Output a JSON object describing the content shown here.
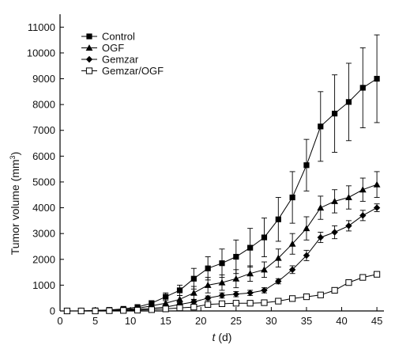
{
  "chart_data": {
    "type": "line",
    "xlabel_var": "t",
    "xlabel_unit": " (d)",
    "ylabel": "Tumor volume (mm",
    "ylabel_sup": "3",
    "ylabel_close": ")",
    "xlim": [
      0,
      46
    ],
    "ylim": [
      0,
      11500
    ],
    "xticks": [
      0,
      5,
      10,
      15,
      20,
      25,
      30,
      35,
      40,
      45
    ],
    "yticks": [
      0,
      1000,
      2000,
      3000,
      4000,
      5000,
      6000,
      7000,
      8000,
      9000,
      10000,
      11000
    ],
    "legend_position": "top-left",
    "x": [
      1,
      3,
      5,
      7,
      9,
      11,
      13,
      15,
      17,
      19,
      21,
      23,
      25,
      27,
      29,
      31,
      33,
      35,
      37,
      39,
      41,
      43,
      45
    ],
    "series": [
      {
        "name": "Control",
        "marker": "square-filled",
        "values": [
          0,
          0,
          20,
          40,
          80,
          150,
          300,
          550,
          800,
          1250,
          1650,
          1850,
          2100,
          2450,
          2850,
          3550,
          4400,
          5650,
          7150,
          7650,
          8100,
          8650,
          9000
        ],
        "errors": [
          0,
          0,
          0,
          0,
          40,
          80,
          100,
          150,
          200,
          400,
          450,
          550,
          650,
          750,
          750,
          850,
          1000,
          1000,
          1350,
          1500,
          1500,
          1550,
          1700
        ]
      },
      {
        "name": "OGF",
        "marker": "triangle-filled",
        "values": [
          0,
          0,
          10,
          20,
          50,
          100,
          200,
          300,
          450,
          700,
          1000,
          1100,
          1250,
          1450,
          1600,
          2050,
          2600,
          3200,
          4000,
          4250,
          4400,
          4700,
          4900
        ],
        "errors": [
          0,
          0,
          0,
          0,
          30,
          50,
          60,
          100,
          150,
          250,
          300,
          300,
          350,
          300,
          300,
          350,
          400,
          450,
          450,
          450,
          450,
          450,
          500
        ]
      },
      {
        "name": "Gemzar",
        "marker": "diamond-filled",
        "values": [
          0,
          0,
          10,
          20,
          30,
          60,
          100,
          150,
          250,
          350,
          500,
          600,
          650,
          700,
          800,
          1150,
          1600,
          2150,
          2850,
          3050,
          3300,
          3700,
          4000
        ],
        "errors": [
          0,
          0,
          0,
          0,
          20,
          40,
          50,
          60,
          80,
          80,
          80,
          100,
          100,
          100,
          100,
          100,
          150,
          200,
          200,
          250,
          200,
          200,
          150
        ]
      },
      {
        "name": "Gemzar/OGF",
        "marker": "square-open",
        "values": [
          0,
          0,
          0,
          10,
          20,
          30,
          50,
          80,
          120,
          150,
          250,
          280,
          300,
          300,
          320,
          380,
          480,
          550,
          620,
          800,
          1100,
          1300,
          1420
        ],
        "errors": [
          0,
          0,
          0,
          0,
          10,
          20,
          30,
          40,
          40,
          50,
          50,
          60,
          60,
          50,
          50,
          50,
          60,
          60,
          80,
          80,
          100,
          100,
          100
        ]
      }
    ]
  }
}
